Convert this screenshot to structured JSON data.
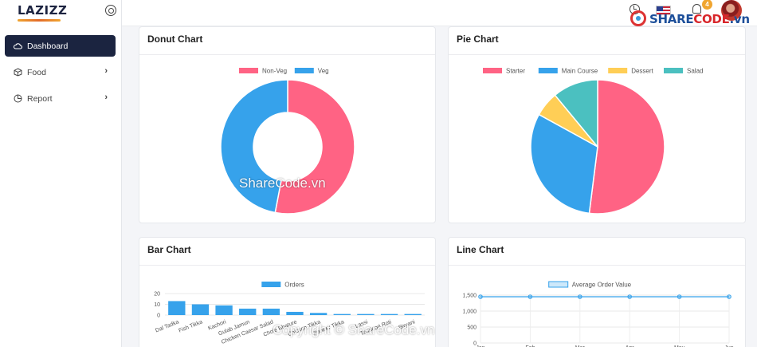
{
  "app": {
    "logo_text": "LAZIZZ"
  },
  "sidebar": {
    "items": [
      {
        "label": "Dashboard",
        "icon": "cloud-icon",
        "active": true,
        "has_submenu": false
      },
      {
        "label": "Food",
        "icon": "cube-icon",
        "active": false,
        "has_submenu": true
      },
      {
        "label": "Report",
        "icon": "pie-chart-icon",
        "active": false,
        "has_submenu": true
      }
    ]
  },
  "header": {
    "notification_count": "4",
    "icons": [
      "clock-icon",
      "us-flag-icon",
      "bell-icon",
      "avatar"
    ]
  },
  "watermark": {
    "brand_blue": "SHARE",
    "brand_red": "CODE",
    "brand_suffix": ".vn",
    "center_text": "ShareCode.vn",
    "copyright_text": "Copyright © ShareCode.vn"
  },
  "cards": {
    "donut_title": "Donut Chart",
    "pie_title": "Pie Chart",
    "bar_title": "Bar Chart",
    "line_title": "Line Chart"
  },
  "chart_data": [
    {
      "type": "pie",
      "variant": "donut",
      "categories": [
        "Non-Veg",
        "Veg"
      ],
      "values": [
        53,
        47
      ],
      "colors": [
        "#ff6384",
        "#36a2eb"
      ],
      "legend": "top"
    },
    {
      "type": "pie",
      "categories": [
        "Starter",
        "Main Course",
        "Dessert",
        "Salad"
      ],
      "values": [
        52,
        31,
        6,
        11
      ],
      "colors": [
        "#ff6384",
        "#36a2eb",
        "#ffce56",
        "#4bc0c0"
      ],
      "legend": "top"
    },
    {
      "type": "bar",
      "series": [
        {
          "name": "Orders",
          "values": [
            13,
            10,
            9,
            6,
            6,
            3,
            2,
            1,
            1,
            1,
            1
          ]
        }
      ],
      "categories": [
        "Dal Tadka",
        "Fish Tikka",
        "Kachori",
        "Gulab Jamun",
        "Chicken Caesar Salad",
        "Chole Bhature",
        "Chicken Tikka",
        "Paneer Tikka",
        "Lassi",
        "Tandoori Roti",
        "Biryani"
      ],
      "ylim": [
        0,
        20
      ],
      "yticks": [
        0,
        10,
        20
      ],
      "colors": [
        "#36a2eb"
      ],
      "legend": "top",
      "grid": true
    },
    {
      "type": "line",
      "series": [
        {
          "name": "Average Order Value",
          "values": [
            1450,
            1450,
            1450,
            1450,
            1450,
            1450
          ]
        }
      ],
      "categories": [
        "Jan",
        "Feb",
        "Mar",
        "Apr",
        "May",
        "Jun"
      ],
      "ylim": [
        0,
        1500
      ],
      "yticks": [
        0,
        500,
        1000,
        1500
      ],
      "ytick_labels": [
        "0",
        "500",
        "1,000",
        "1,500"
      ],
      "colors": [
        "#36a2eb"
      ],
      "legend": "top",
      "grid": true
    }
  ]
}
